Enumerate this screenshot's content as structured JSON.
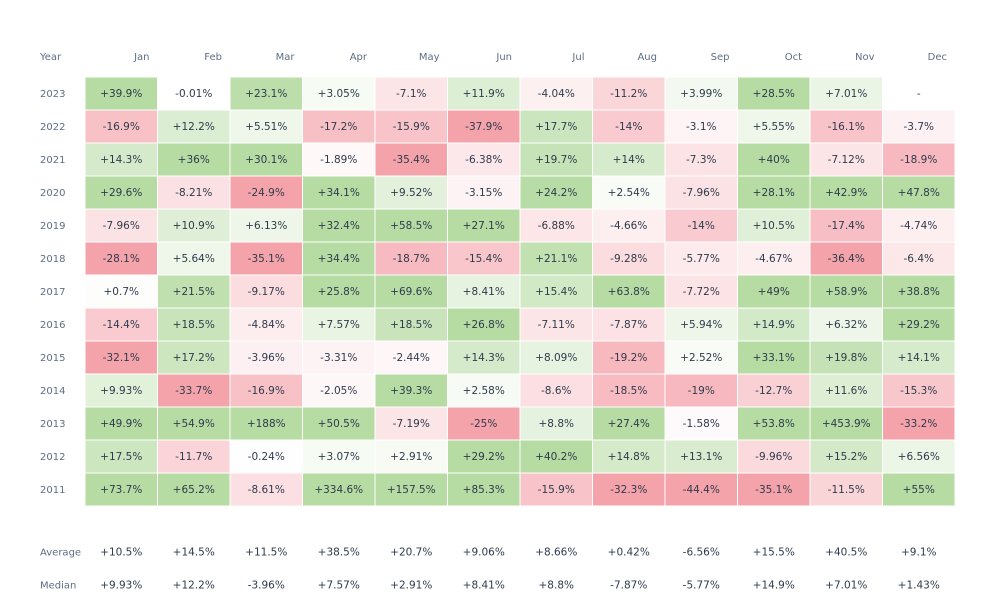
{
  "chart_data": {
    "type": "heatmap",
    "corner_label": "Year",
    "columns": [
      "Jan",
      "Feb",
      "Mar",
      "Apr",
      "May",
      "Jun",
      "Jul",
      "Aug",
      "Sep",
      "Oct",
      "Nov",
      "Dec"
    ],
    "rows": [
      "2023",
      "2022",
      "2021",
      "2020",
      "2019",
      "2018",
      "2017",
      "2016",
      "2015",
      "2014",
      "2013",
      "2012",
      "2011"
    ],
    "values": [
      [
        "+39.9%",
        "-0.01%",
        "+23.1%",
        "+3.05%",
        "-7.1%",
        "+11.9%",
        "-4.04%",
        "-11.2%",
        "+3.99%",
        "+28.5%",
        "+7.01%",
        "-"
      ],
      [
        "-16.9%",
        "+12.2%",
        "+5.51%",
        "-17.2%",
        "-15.9%",
        "-37.9%",
        "+17.7%",
        "-14%",
        "-3.1%",
        "+5.55%",
        "-16.1%",
        "-3.7%"
      ],
      [
        "+14.3%",
        "+36%",
        "+30.1%",
        "-1.89%",
        "-35.4%",
        "-6.38%",
        "+19.7%",
        "+14%",
        "-7.3%",
        "+40%",
        "-7.12%",
        "-18.9%"
      ],
      [
        "+29.6%",
        "-8.21%",
        "-24.9%",
        "+34.1%",
        "+9.52%",
        "-3.15%",
        "+24.2%",
        "+2.54%",
        "-7.96%",
        "+28.1%",
        "+42.9%",
        "+47.8%"
      ],
      [
        "-7.96%",
        "+10.9%",
        "+6.13%",
        "+32.4%",
        "+58.5%",
        "+27.1%",
        "-6.88%",
        "-4.66%",
        "-14%",
        "+10.5%",
        "-17.4%",
        "-4.74%"
      ],
      [
        "-28.1%",
        "+5.64%",
        "-35.1%",
        "+34.4%",
        "-18.7%",
        "-15.4%",
        "+21.1%",
        "-9.28%",
        "-5.77%",
        "-4.67%",
        "-36.4%",
        "-6.4%"
      ],
      [
        "+0.7%",
        "+21.5%",
        "-9.17%",
        "+25.8%",
        "+69.6%",
        "+8.41%",
        "+15.4%",
        "+63.8%",
        "-7.72%",
        "+49%",
        "+58.9%",
        "+38.8%"
      ],
      [
        "-14.4%",
        "+18.5%",
        "-4.84%",
        "+7.57%",
        "+18.5%",
        "+26.8%",
        "-7.11%",
        "-7.87%",
        "+5.94%",
        "+14.9%",
        "+6.32%",
        "+29.2%"
      ],
      [
        "-32.1%",
        "+17.2%",
        "-3.96%",
        "-3.31%",
        "-2.44%",
        "+14.3%",
        "+8.09%",
        "-19.2%",
        "+2.52%",
        "+33.1%",
        "+19.8%",
        "+14.1%"
      ],
      [
        "+9.93%",
        "-33.7%",
        "-16.9%",
        "-2.05%",
        "+39.3%",
        "+2.58%",
        "-8.6%",
        "-18.5%",
        "-19%",
        "-12.7%",
        "+11.6%",
        "-15.3%"
      ],
      [
        "+49.9%",
        "+54.9%",
        "+188%",
        "+50.5%",
        "-7.19%",
        "-25%",
        "+8.8%",
        "+27.4%",
        "-1.58%",
        "+53.8%",
        "+453.9%",
        "-33.2%"
      ],
      [
        "+17.5%",
        "-11.7%",
        "-0.24%",
        "+3.07%",
        "+2.91%",
        "+29.2%",
        "+40.2%",
        "+14.8%",
        "+13.1%",
        "-9.96%",
        "+15.2%",
        "+6.56%"
      ],
      [
        "+73.7%",
        "+65.2%",
        "-8.61%",
        "+334.6%",
        "+157.5%",
        "+85.3%",
        "-15.9%",
        "-32.3%",
        "-44.4%",
        "-35.1%",
        "-11.5%",
        "+55%"
      ]
    ],
    "summary": [
      {
        "label": "Average",
        "values": [
          "+10.5%",
          "+14.5%",
          "+11.5%",
          "+38.5%",
          "+20.7%",
          "+9.06%",
          "+8.66%",
          "+0.42%",
          "-6.56%",
          "+15.5%",
          "+40.5%",
          "+9.1%"
        ]
      },
      {
        "label": "Median",
        "values": [
          "+9.93%",
          "+12.2%",
          "-3.96%",
          "+7.57%",
          "+2.91%",
          "+8.41%",
          "+8.8%",
          "-7.87%",
          "-5.77%",
          "+14.9%",
          "+7.01%",
          "+1.43%"
        ]
      }
    ],
    "colors": {
      "positive": "#b6dba3",
      "negative": "#f4a3ab",
      "neutral": "#ffffff",
      "text": "#2f3b4c",
      "label": "#5d6e86"
    }
  }
}
